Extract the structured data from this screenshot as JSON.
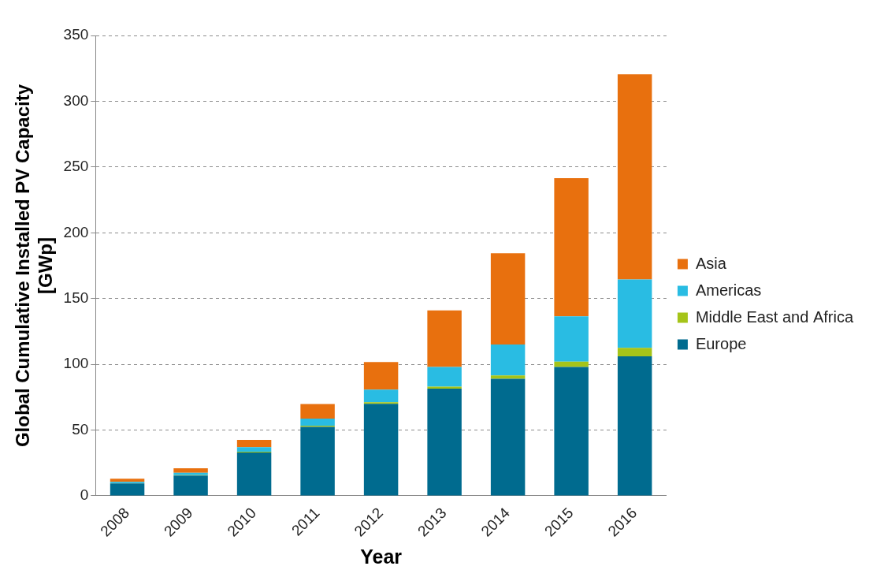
{
  "chart_data": {
    "type": "bar",
    "stacked": true,
    "x_label": "Year",
    "y_label": [
      "Global Cumulative Installed PV Capacity",
      "[GWp]"
    ],
    "categories": [
      "2008",
      "2009",
      "2010",
      "2011",
      "2012",
      "2013",
      "2014",
      "2015",
      "2016"
    ],
    "series": [
      {
        "name": "Europe",
        "color": "#006b8f",
        "values": [
          9.5,
          15.5,
          33,
          52.5,
          70,
          81.5,
          89,
          98,
          106
        ]
      },
      {
        "name": "Middle East and Africa",
        "color": "#a5c419",
        "values": [
          0.1,
          0.3,
          0.6,
          0.8,
          1.2,
          1.5,
          2.5,
          4,
          6.5
        ]
      },
      {
        "name": "Americas",
        "color": "#29bce3",
        "values": [
          1.0,
          1.7,
          3.4,
          5.5,
          9.5,
          15,
          23.5,
          34.5,
          52
        ]
      },
      {
        "name": "Asia",
        "color": "#e8700e",
        "values": [
          2.5,
          3.5,
          5.5,
          11,
          21,
          43,
          69.5,
          105,
          156
        ]
      }
    ],
    "ylim": [
      0,
      350
    ],
    "yticks": [
      0,
      50,
      100,
      150,
      200,
      250,
      300,
      350
    ],
    "grid": true,
    "legend": "right"
  }
}
